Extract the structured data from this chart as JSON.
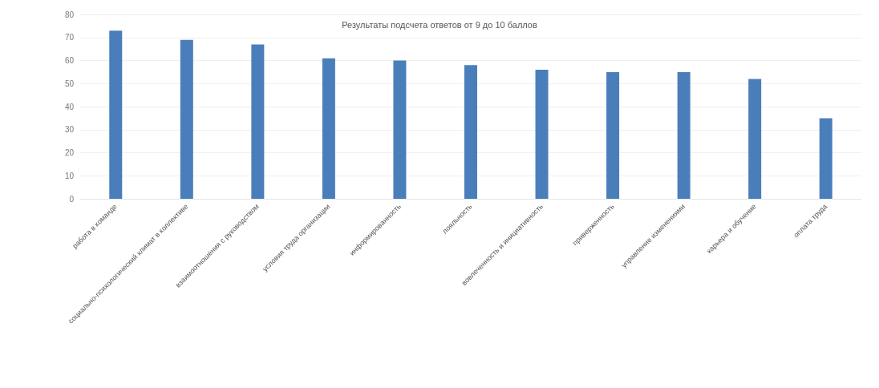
{
  "chart_data": {
    "type": "bar",
    "title": "Результаты подсчета ответов от 9 до 10 баллов",
    "categories": [
      "работа в команде",
      "социально-психологический климат в коллективе",
      "взаимоотношения с руководством",
      "условия труда организации",
      "информированность",
      "лояльность",
      "вовлеченность и инициативность",
      "приверженность",
      "управление изменениями",
      "карьера и обучение",
      "оплата труда"
    ],
    "values": [
      73,
      69,
      67,
      61,
      60,
      58,
      56,
      55,
      55,
      52,
      35
    ],
    "color": "#4a7ebb",
    "ylim": [
      0,
      80
    ],
    "yticks": [
      0,
      10,
      20,
      30,
      40,
      50,
      60,
      70,
      80
    ],
    "grid": "y"
  }
}
